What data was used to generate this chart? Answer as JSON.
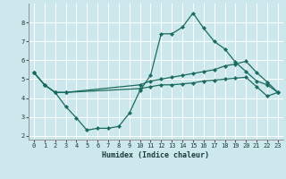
{
  "bg_color": "#cce8ec",
  "grid_color": "#ffffff",
  "line_color": "#1a6b5e",
  "xlabel": "Humidex (Indice chaleur)",
  "xlim": [
    -0.5,
    23.5
  ],
  "ylim": [
    1.8,
    9.0
  ],
  "xticks": [
    0,
    1,
    2,
    3,
    4,
    5,
    6,
    7,
    8,
    9,
    10,
    11,
    12,
    13,
    14,
    15,
    16,
    17,
    18,
    19,
    20,
    21,
    22,
    23
  ],
  "yticks": [
    2,
    3,
    4,
    5,
    6,
    7,
    8
  ],
  "line1_x": [
    0,
    1,
    2,
    3,
    4,
    5,
    6,
    7,
    8,
    9,
    10,
    11,
    12,
    13,
    14,
    15,
    16,
    17,
    18,
    19,
    20,
    21,
    22,
    23
  ],
  "line1_y": [
    5.35,
    4.7,
    4.3,
    3.55,
    2.95,
    2.3,
    2.4,
    2.4,
    2.5,
    3.2,
    4.4,
    5.2,
    7.4,
    7.4,
    7.75,
    8.5,
    7.7,
    7.0,
    6.6,
    5.9,
    5.4,
    4.9,
    4.7,
    4.3
  ],
  "line2_x": [
    0,
    1,
    2,
    3,
    10,
    11,
    12,
    13,
    14,
    15,
    16,
    17,
    18,
    19,
    20,
    21,
    22,
    23
  ],
  "line2_y": [
    5.35,
    4.7,
    4.3,
    4.3,
    4.7,
    4.9,
    5.0,
    5.1,
    5.2,
    5.3,
    5.4,
    5.5,
    5.7,
    5.8,
    5.95,
    5.35,
    4.85,
    4.3
  ],
  "line3_x": [
    0,
    1,
    2,
    3,
    10,
    11,
    12,
    13,
    14,
    15,
    16,
    17,
    18,
    19,
    20,
    21,
    22,
    23
  ],
  "line3_y": [
    5.35,
    4.7,
    4.3,
    4.3,
    4.5,
    4.6,
    4.7,
    4.7,
    4.75,
    4.8,
    4.9,
    4.95,
    5.0,
    5.05,
    5.1,
    4.6,
    4.1,
    4.3
  ]
}
